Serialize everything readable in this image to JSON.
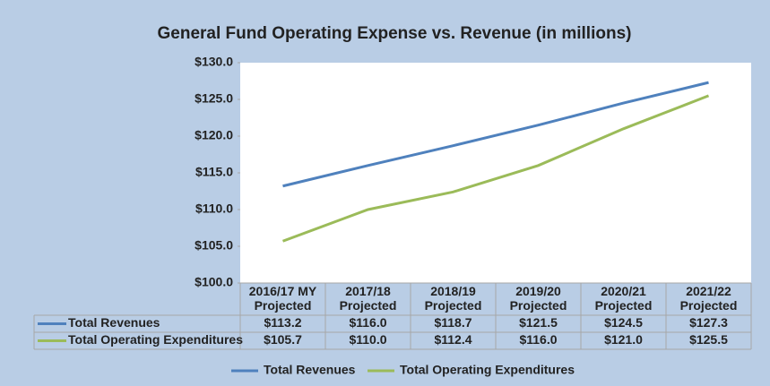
{
  "chart_data": {
    "type": "line",
    "title": "General Fund Operating Expense vs. Revenue (in millions)",
    "categories": [
      "2016/17 MY Projected",
      "2017/18 Projected",
      "2018/19 Projected",
      "2019/20 Projected",
      "2020/21 Projected",
      "2021/22 Projected"
    ],
    "series": [
      {
        "name": "Total Revenues",
        "color": "#4f81bd",
        "values": [
          113.2,
          116.0,
          118.7,
          121.5,
          124.5,
          127.3
        ],
        "value_labels": [
          "$113.2",
          "$116.0",
          "$118.7",
          "$121.5",
          "$124.5",
          "$127.3"
        ]
      },
      {
        "name": "Total Operating Expenditures",
        "color": "#9bbb59",
        "values": [
          105.7,
          110.0,
          112.4,
          116.0,
          121.0,
          125.5
        ],
        "value_labels": [
          "$105.7",
          "$110.0",
          "$112.4",
          "$116.0",
          "$121.0",
          "$125.5"
        ]
      }
    ],
    "ylim": [
      100,
      130
    ],
    "yticks": [
      {
        "value": 100,
        "label": "$100.0"
      },
      {
        "value": 105,
        "label": "$105.0"
      },
      {
        "value": 110,
        "label": "$110.0"
      },
      {
        "value": 115,
        "label": "$115.0"
      },
      {
        "value": 120,
        "label": "$120.0"
      },
      {
        "value": 125,
        "label": "$125.0"
      },
      {
        "value": 130,
        "label": "$130.0"
      }
    ],
    "data_table": true,
    "legend": "bottom"
  }
}
